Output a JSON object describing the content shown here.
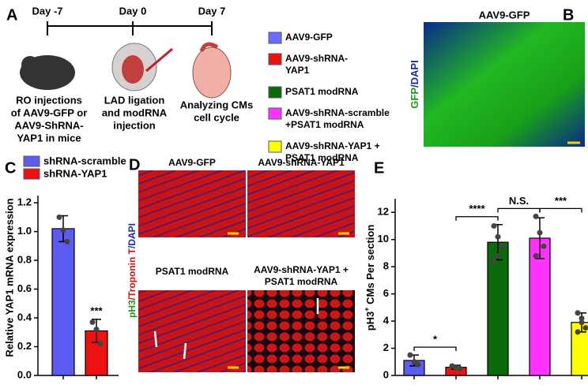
{
  "panel_labels": [
    "A",
    "B",
    "C",
    "D",
    "E"
  ],
  "timeline": {
    "days": [
      "Day -7",
      "Day 0",
      "Day 7"
    ],
    "steps": [
      [
        "RO injections",
        "of AAV9-GFP or",
        "AAV9-ShRNA-",
        "YAP1 in mice"
      ],
      [
        "LAD ligation",
        "and modRNA",
        "injection"
      ],
      [
        "Analyzing CMs",
        "cell cycle"
      ]
    ]
  },
  "legend_a": [
    {
      "lines": [
        "AAV9-GFP"
      ],
      "color": "#6b6bff"
    },
    {
      "lines": [
        "AAV9-shRNA-",
        "YAP1"
      ],
      "color": "#ee1111"
    },
    {
      "lines": [
        "PSAT1 modRNA"
      ],
      "color": "#0b6b0b"
    },
    {
      "lines": [
        "AAV9-shRNA-scramble",
        "+PSAT1 modRNA"
      ],
      "color": "#ff33ff"
    },
    {
      "lines": [
        "AAV9-shRNA-YAP1 +",
        "PSAT1 modRNA"
      ],
      "color": "#ffff00"
    }
  ],
  "panel_b": {
    "title": "AAV9-GFP",
    "ylabel": [
      "GFP",
      "/DAPI"
    ]
  },
  "panel_d": {
    "titles": [
      "AAV9-GFP",
      "AAV9-shRNA-YAP1",
      "PSAT1 modRNA",
      "AAV9-shRNA-YAP1 +",
      "PSAT1 modRNA"
    ],
    "ylabel": [
      "pH3",
      "/Troponin T",
      "/DAPI"
    ]
  },
  "chart_data": [
    {
      "type": "bar",
      "ylabel": "Relative YAP1 mRNA expression",
      "ylim": [
        0,
        1.25
      ],
      "yticks": [
        {
          "value": 0,
          "label": "0.0"
        },
        0.2,
        0.4,
        0.6,
        0.8,
        {
          "value": 1,
          "label": "1.0"
        },
        {
          "value": 1.2,
          "label": "1.2"
        }
      ],
      "series": [
        {
          "name": "shRNA-scramble",
          "color": "#5c5cf0",
          "values": [
            1.02
          ],
          "errors": [
            0.09
          ],
          "points": [
            [
              1.1,
              1.01,
              0.93
            ]
          ]
        },
        {
          "name": "shRNA-YAP1",
          "color": "#ee1111",
          "values": [
            0.31
          ],
          "errors": [
            0.08
          ],
          "points": [
            [
              0.37,
              0.32,
              0.22
            ]
          ]
        }
      ],
      "annotations": [
        {
          "text": "***",
          "bar": 1
        }
      ]
    },
    {
      "type": "bar",
      "ylabel": [
        "pH3",
        "+",
        " CMs Per section"
      ],
      "ylim": [
        0,
        13
      ],
      "yticks": [
        0,
        2,
        4,
        6,
        8,
        10,
        12
      ],
      "values": [
        1.1,
        0.6,
        9.8,
        10.1,
        3.9
      ],
      "errors": [
        0.4,
        0.15,
        1.3,
        1.5,
        0.7
      ],
      "colors": [
        "#5c5cf0",
        "#ee1111",
        "#0b6b0b",
        "#ff33ff",
        "#ffff00"
      ],
      "points": [
        [
          1.5,
          1.0,
          0.8
        ],
        [
          0.7,
          0.55,
          0.5
        ],
        [
          11.0,
          10.2,
          9.5,
          8.4,
          8.8
        ],
        [
          11.7,
          10.5,
          9.5,
          8.8
        ],
        [
          4.6,
          4.2,
          3.5,
          3.2,
          3.9
        ]
      ],
      "annotations": [
        {
          "text": "*",
          "between": [
            0,
            1
          ]
        },
        {
          "text": "****",
          "between": [
            1,
            2
          ]
        },
        {
          "text": "N.S.",
          "between": [
            2,
            3
          ]
        },
        {
          "text": "***",
          "between": [
            3,
            4
          ]
        }
      ]
    }
  ]
}
